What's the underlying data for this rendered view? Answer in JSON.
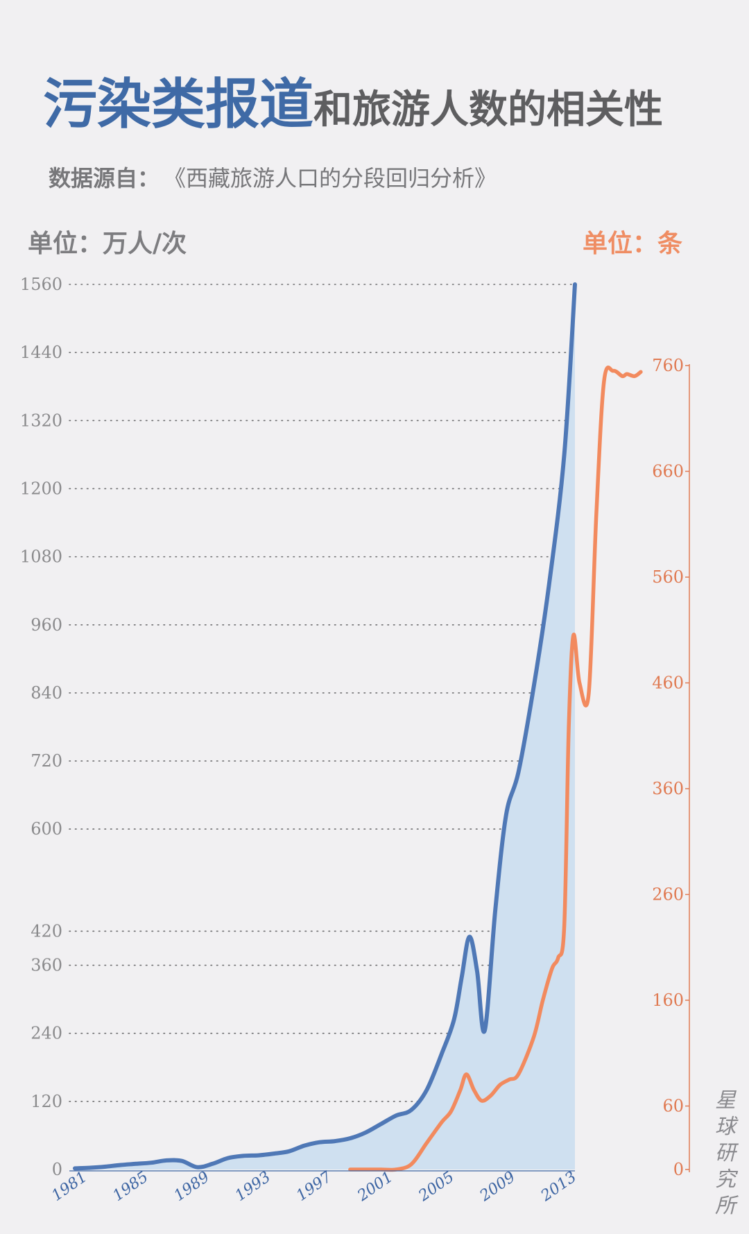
{
  "header": {
    "title_highlight": "污染类报道",
    "title_rest": "和旅游人数的相关性",
    "source_label": "数据源自：",
    "source_text": "《西藏旅游人口的分段回归分析》"
  },
  "units": {
    "left": "单位：万人/次",
    "right": "单位：条"
  },
  "watermark": [
    "星",
    "球",
    "研",
    "究",
    "所"
  ],
  "colors": {
    "tourists": "#4f78b6",
    "tourists_fill": "#cfe0f0",
    "reports": "#f28a5e",
    "grid": "#6e6e70",
    "left_ticks": "#8a8a8c",
    "right_ticks": "#e07a52",
    "x_ticks": "#3d65a3"
  },
  "chart_data": {
    "type": "line",
    "x_tick_labels": [
      "1981",
      "1985",
      "1989",
      "1993",
      "1997",
      "2001",
      "2005",
      "2009",
      "2013"
    ],
    "y_left": {
      "ylim": [
        0,
        1560
      ],
      "ticks": [
        0,
        120,
        240,
        360,
        420,
        600,
        720,
        840,
        960,
        1080,
        1200,
        1320,
        1440,
        1560
      ],
      "grid": true
    },
    "y_right": {
      "ylim": [
        0,
        760
      ],
      "ticks": [
        0,
        60,
        160,
        260,
        360,
        460,
        560,
        660,
        760
      ]
    },
    "series": [
      {
        "key": "tourists",
        "axis": "left",
        "area": true,
        "x": [
          1981,
          1982,
          1983,
          1984,
          1985,
          1986,
          1987,
          1988,
          1989,
          1990,
          1991,
          1992,
          1993,
          1994,
          1995,
          1996,
          1997,
          1998,
          1999,
          2000,
          2001,
          2002,
          2003,
          2004,
          2005,
          2005.8,
          2006.3,
          2006.8,
          2007.3,
          2007.8,
          2008.5,
          2009.2,
          2010,
          2011,
          2012,
          2013,
          2013.7
        ],
        "y": [
          2,
          3,
          5,
          8,
          10,
          12,
          16,
          15,
          4,
          10,
          20,
          24,
          25,
          28,
          32,
          42,
          48,
          50,
          55,
          65,
          80,
          95,
          105,
          140,
          205,
          265,
          340,
          410,
          350,
          245,
          460,
          625,
          700,
          850,
          1030,
          1260,
          1560
        ]
      },
      {
        "key": "reports",
        "axis": "right",
        "x": [
          1999,
          2000,
          2001,
          2002,
          2003,
          2004,
          2005,
          2005.6,
          2006.2,
          2006.6,
          2007.1,
          2007.6,
          2008.2,
          2008.8,
          2009.4,
          2010,
          2011,
          2011.6,
          2012.2,
          2012.6,
          2013,
          2013.3,
          2013.6,
          2014,
          2014.6,
          2015.1,
          2015.6,
          2016.2,
          2016.8,
          2017.1,
          2017.6,
          2018
        ],
        "y": [
          0,
          0,
          0,
          0,
          5,
          25,
          45,
          55,
          75,
          90,
          75,
          65,
          70,
          80,
          85,
          90,
          125,
          160,
          190,
          200,
          230,
          420,
          505,
          460,
          450,
          620,
          745,
          755,
          750,
          752,
          750,
          754
        ]
      }
    ]
  }
}
